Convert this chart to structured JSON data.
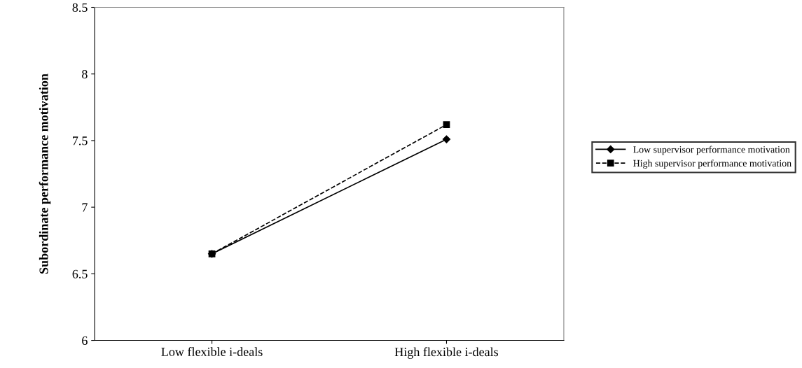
{
  "chart_data": {
    "type": "line",
    "ylabel": "Subordinate performance motivation",
    "categories": [
      "Low flexible i-deals",
      "High flexible i-deals"
    ],
    "series": [
      {
        "name": "Low supervisor performance motivation",
        "color": "#000000",
        "values": [
          6.65,
          7.51
        ],
        "marker": "diamond",
        "line_style": "solid"
      },
      {
        "name": "High supervisor performance motivation",
        "color": "#000000",
        "values": [
          6.65,
          7.62
        ],
        "marker": "square",
        "line_style": "dashed"
      }
    ],
    "ylim": [
      6,
      8.5
    ],
    "yticks": [
      6,
      6.5,
      7,
      7.5,
      8,
      8.5
    ],
    "grid": false,
    "legend": "right"
  }
}
